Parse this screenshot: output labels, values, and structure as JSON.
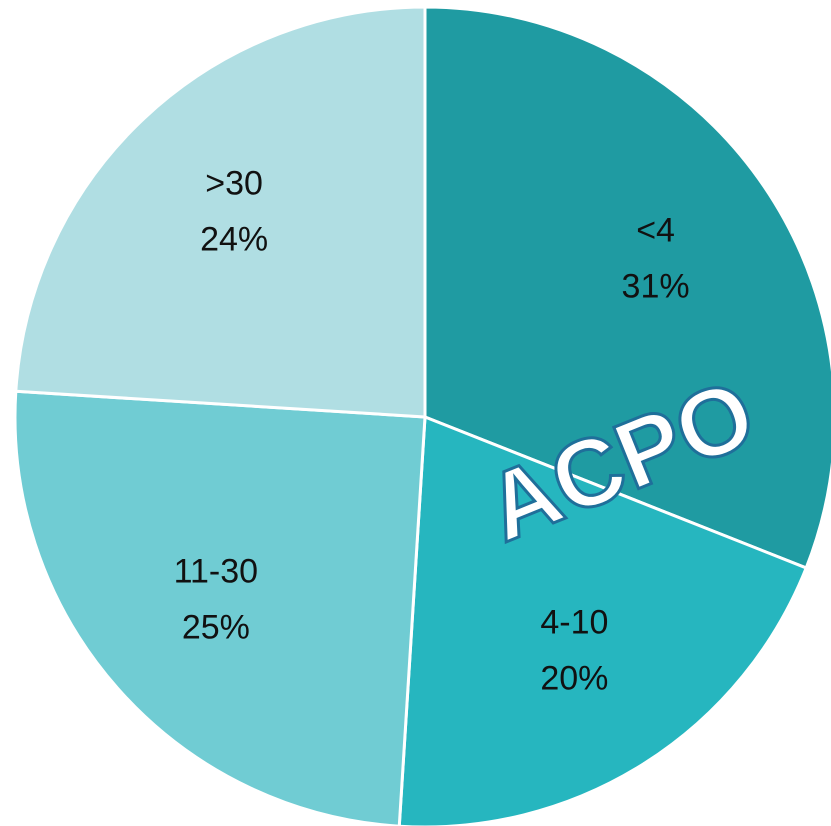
{
  "chart_data": {
    "type": "pie",
    "categories": [
      "<4",
      "4-10",
      "11-30",
      ">30"
    ],
    "values": [
      31,
      20,
      25,
      24
    ],
    "value_labels": [
      "31%",
      "20%",
      "25%",
      "24%"
    ],
    "colors": [
      "#1f9ba2",
      "#26b6bf",
      "#70ccd3",
      "#b0dee3"
    ],
    "annotation": "ACPO"
  }
}
